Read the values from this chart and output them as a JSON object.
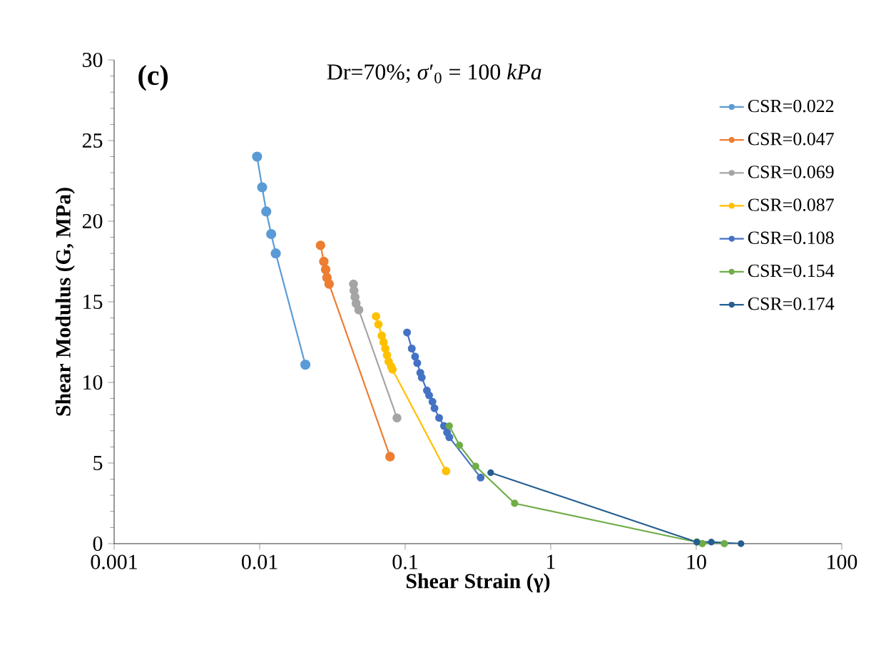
{
  "chart_data": {
    "type": "line",
    "title": "Dr=70%; *σ*′$_{0}$ = 100 *kPa*",
    "xlabel": "Shear Strain (γ)",
    "ylabel": "Shear Modulus (G, MPa)",
    "annotations": [
      "(c)"
    ],
    "log": "x",
    "xlim": [
      0.001,
      100
    ],
    "xticks": [
      0.001,
      0.01,
      0.1,
      1,
      10,
      100
    ],
    "ylim": [
      0,
      30
    ],
    "yticks": [
      0,
      5,
      10,
      15,
      20,
      25,
      30
    ],
    "grid": false,
    "legend": "top right",
    "marker": "circle",
    "line_style": "solid",
    "series": [
      {
        "name": "CSR=0.022",
        "color": "#5b9bd5",
        "x": [
          0.0096,
          0.0104,
          0.0111,
          0.012,
          0.0129,
          0.0206
        ],
        "values": [
          24.0,
          22.1,
          20.6,
          19.2,
          18.0,
          11.1
        ]
      },
      {
        "name": "CSR=0.047",
        "color": "#ed7d31",
        "x": [
          0.0262,
          0.0276,
          0.0284,
          0.029,
          0.03,
          0.0787
        ],
        "values": [
          18.5,
          17.5,
          17.0,
          16.5,
          16.1,
          5.4
        ]
      },
      {
        "name": "CSR=0.069",
        "color": "#a5a5a5",
        "x": [
          0.0441,
          0.0445,
          0.0452,
          0.046,
          0.048,
          0.0878
        ],
        "values": [
          16.1,
          15.7,
          15.3,
          14.9,
          14.5,
          7.8
        ]
      },
      {
        "name": "CSR=0.087",
        "color": "#ffc000",
        "x": [
          0.063,
          0.0655,
          0.069,
          0.071,
          0.073,
          0.075,
          0.077,
          0.08,
          0.0818,
          0.191
        ],
        "values": [
          14.1,
          13.6,
          12.9,
          12.5,
          12.1,
          11.7,
          11.3,
          11.0,
          10.8,
          4.5
        ]
      },
      {
        "name": "CSR=0.108",
        "color": "#4472c4",
        "x": [
          0.103,
          0.111,
          0.117,
          0.121,
          0.127,
          0.13,
          0.141,
          0.146,
          0.154,
          0.159,
          0.171,
          0.185,
          0.194,
          0.201,
          0.33
        ],
        "values": [
          13.1,
          12.1,
          11.6,
          11.2,
          10.6,
          10.3,
          9.5,
          9.2,
          8.8,
          8.4,
          7.8,
          7.3,
          6.9,
          6.6,
          4.1
        ]
      },
      {
        "name": "CSR=0.154",
        "color": "#70ad47",
        "x": [
          0.201,
          0.236,
          0.305,
          0.565,
          10.1,
          11.0,
          15.6
        ],
        "values": [
          7.3,
          6.1,
          4.8,
          2.5,
          0.1,
          0.0,
          0.0
        ]
      },
      {
        "name": "CSR=0.174",
        "color": "#255e91",
        "x": [
          0.387,
          10.1,
          12.7,
          20.3
        ],
        "values": [
          4.4,
          0.1,
          0.1,
          0.0
        ]
      }
    ]
  }
}
